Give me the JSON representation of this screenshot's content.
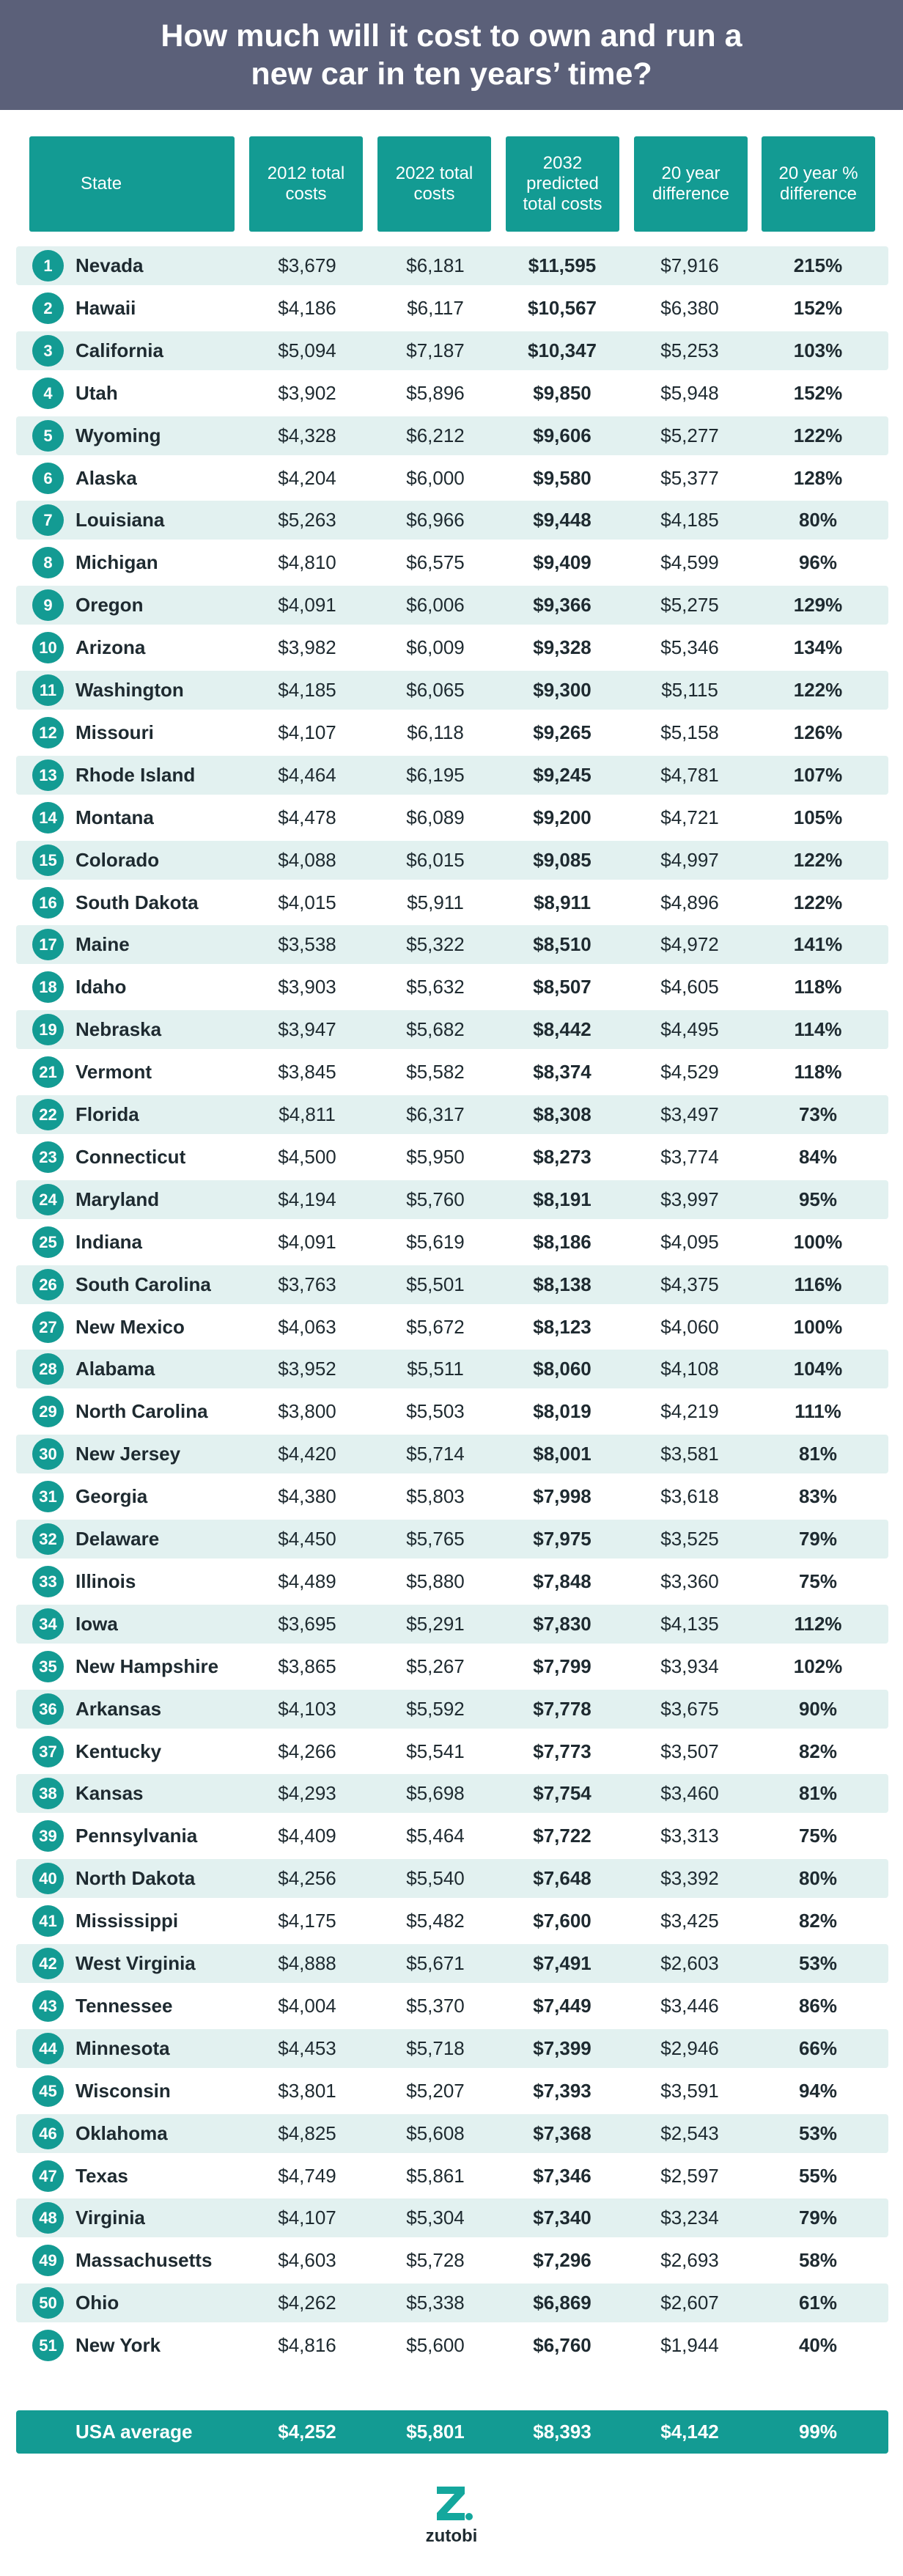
{
  "header": {
    "title": "How much will it cost to own and run a new car in ten years’ time?"
  },
  "table": {
    "headers": [
      "State",
      "2012 total costs",
      "2022 total costs",
      "2032 predicted total costs",
      "20 year difference",
      "20 year % difference"
    ],
    "rows": [
      [
        "1",
        "Nevada",
        "$3,679",
        "$6,181",
        "$11,595",
        "$7,916",
        "215%"
      ],
      [
        "2",
        "Hawaii",
        "$4,186",
        "$6,117",
        "$10,567",
        "$6,380",
        "152%"
      ],
      [
        "3",
        "California",
        "$5,094",
        "$7,187",
        "$10,347",
        "$5,253",
        "103%"
      ],
      [
        "4",
        "Utah",
        "$3,902",
        "$5,896",
        "$9,850",
        "$5,948",
        "152%"
      ],
      [
        "5",
        "Wyoming",
        "$4,328",
        "$6,212",
        "$9,606",
        "$5,277",
        "122%"
      ],
      [
        "6",
        "Alaska",
        "$4,204",
        "$6,000",
        "$9,580",
        "$5,377",
        "128%"
      ],
      [
        "7",
        "Louisiana",
        "$5,263",
        "$6,966",
        "$9,448",
        "$4,185",
        "80%"
      ],
      [
        "8",
        "Michigan",
        "$4,810",
        "$6,575",
        "$9,409",
        "$4,599",
        "96%"
      ],
      [
        "9",
        "Oregon",
        "$4,091",
        "$6,006",
        "$9,366",
        "$5,275",
        "129%"
      ],
      [
        "10",
        "Arizona",
        "$3,982",
        "$6,009",
        "$9,328",
        "$5,346",
        "134%"
      ],
      [
        "11",
        "Washington",
        "$4,185",
        "$6,065",
        "$9,300",
        "$5,115",
        "122%"
      ],
      [
        "12",
        "Missouri",
        "$4,107",
        "$6,118",
        "$9,265",
        "$5,158",
        "126%"
      ],
      [
        "13",
        "Rhode Island",
        "$4,464",
        "$6,195",
        "$9,245",
        "$4,781",
        "107%"
      ],
      [
        "14",
        "Montana",
        "$4,478",
        "$6,089",
        "$9,200",
        "$4,721",
        "105%"
      ],
      [
        "15",
        "Colorado",
        "$4,088",
        "$6,015",
        "$9,085",
        "$4,997",
        "122%"
      ],
      [
        "16",
        "South Dakota",
        "$4,015",
        "$5,911",
        "$8,911",
        "$4,896",
        "122%"
      ],
      [
        "17",
        "Maine",
        "$3,538",
        "$5,322",
        "$8,510",
        "$4,972",
        "141%"
      ],
      [
        "18",
        "Idaho",
        "$3,903",
        "$5,632",
        "$8,507",
        "$4,605",
        "118%"
      ],
      [
        "19",
        "Nebraska",
        "$3,947",
        "$5,682",
        "$8,442",
        "$4,495",
        "114%"
      ],
      [
        "21",
        "Vermont",
        "$3,845",
        "$5,582",
        "$8,374",
        "$4,529",
        "118%"
      ],
      [
        "22",
        "Florida",
        "$4,811",
        "$6,317",
        "$8,308",
        "$3,497",
        "73%"
      ],
      [
        "23",
        "Connecticut",
        "$4,500",
        "$5,950",
        "$8,273",
        "$3,774",
        "84%"
      ],
      [
        "24",
        "Maryland",
        "$4,194",
        "$5,760",
        "$8,191",
        "$3,997",
        "95%"
      ],
      [
        "25",
        "Indiana",
        "$4,091",
        "$5,619",
        "$8,186",
        "$4,095",
        "100%"
      ],
      [
        "26",
        "South Carolina",
        "$3,763",
        "$5,501",
        "$8,138",
        "$4,375",
        "116%"
      ],
      [
        "27",
        "New Mexico",
        "$4,063",
        "$5,672",
        "$8,123",
        "$4,060",
        "100%"
      ],
      [
        "28",
        "Alabama",
        "$3,952",
        "$5,511",
        "$8,060",
        "$4,108",
        "104%"
      ],
      [
        "29",
        "North Carolina",
        "$3,800",
        "$5,503",
        "$8,019",
        "$4,219",
        "111%"
      ],
      [
        "30",
        "New Jersey",
        "$4,420",
        "$5,714",
        "$8,001",
        "$3,581",
        "81%"
      ],
      [
        "31",
        "Georgia",
        "$4,380",
        "$5,803",
        "$7,998",
        "$3,618",
        "83%"
      ],
      [
        "32",
        "Delaware",
        "$4,450",
        "$5,765",
        "$7,975",
        "$3,525",
        "79%"
      ],
      [
        "33",
        "Illinois",
        "$4,489",
        "$5,880",
        "$7,848",
        "$3,360",
        "75%"
      ],
      [
        "34",
        "Iowa",
        "$3,695",
        "$5,291",
        "$7,830",
        "$4,135",
        "112%"
      ],
      [
        "35",
        "New Hampshire",
        "$3,865",
        "$5,267",
        "$7,799",
        "$3,934",
        "102%"
      ],
      [
        "36",
        "Arkansas",
        "$4,103",
        "$5,592",
        "$7,778",
        "$3,675",
        "90%"
      ],
      [
        "37",
        "Kentucky",
        "$4,266",
        "$5,541",
        "$7,773",
        "$3,507",
        "82%"
      ],
      [
        "38",
        "Kansas",
        "$4,293",
        "$5,698",
        "$7,754",
        "$3,460",
        "81%"
      ],
      [
        "39",
        "Pennsylvania",
        "$4,409",
        "$5,464",
        "$7,722",
        "$3,313",
        "75%"
      ],
      [
        "40",
        "North Dakota",
        "$4,256",
        "$5,540",
        "$7,648",
        "$3,392",
        "80%"
      ],
      [
        "41",
        "Mississippi",
        "$4,175",
        "$5,482",
        "$7,600",
        "$3,425",
        "82%"
      ],
      [
        "42",
        "West Virginia",
        "$4,888",
        "$5,671",
        "$7,491",
        "$2,603",
        "53%"
      ],
      [
        "43",
        "Tennessee",
        "$4,004",
        "$5,370",
        "$7,449",
        "$3,446",
        "86%"
      ],
      [
        "44",
        "Minnesota",
        "$4,453",
        "$5,718",
        "$7,399",
        "$2,946",
        "66%"
      ],
      [
        "45",
        "Wisconsin",
        "$3,801",
        "$5,207",
        "$7,393",
        "$3,591",
        "94%"
      ],
      [
        "46",
        "Oklahoma",
        "$4,825",
        "$5,608",
        "$7,368",
        "$2,543",
        "53%"
      ],
      [
        "47",
        "Texas",
        "$4,749",
        "$5,861",
        "$7,346",
        "$2,597",
        "55%"
      ],
      [
        "48",
        "Virginia",
        "$4,107",
        "$5,304",
        "$7,340",
        "$3,234",
        "79%"
      ],
      [
        "49",
        "Massachusetts",
        "$4,603",
        "$5,728",
        "$7,296",
        "$2,693",
        "58%"
      ],
      [
        "50",
        "Ohio",
        "$4,262",
        "$5,338",
        "$6,869",
        "$2,607",
        "61%"
      ],
      [
        "51",
        "New York",
        "$4,816",
        "$5,600",
        "$6,760",
        "$1,944",
        "40%"
      ]
    ],
    "average": [
      "USA average",
      "$4,252",
      "$5,801",
      "$8,393",
      "$4,142",
      "99%"
    ]
  },
  "logo": {
    "text": "zutobi"
  }
}
